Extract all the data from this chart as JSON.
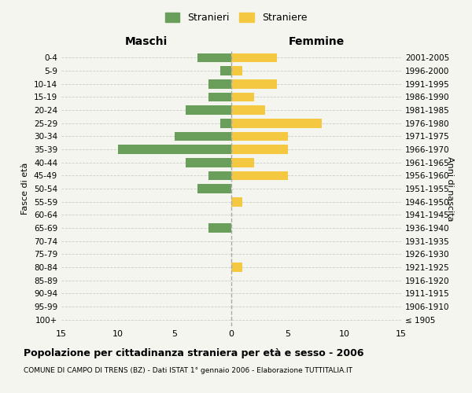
{
  "age_groups": [
    "100+",
    "95-99",
    "90-94",
    "85-89",
    "80-84",
    "75-79",
    "70-74",
    "65-69",
    "60-64",
    "55-59",
    "50-54",
    "45-49",
    "40-44",
    "35-39",
    "30-34",
    "25-29",
    "20-24",
    "15-19",
    "10-14",
    "5-9",
    "0-4"
  ],
  "birth_years": [
    "≤ 1905",
    "1906-1910",
    "1911-1915",
    "1916-1920",
    "1921-1925",
    "1926-1930",
    "1931-1935",
    "1936-1940",
    "1941-1945",
    "1946-1950",
    "1951-1955",
    "1956-1960",
    "1961-1965",
    "1966-1970",
    "1971-1975",
    "1976-1980",
    "1981-1985",
    "1986-1990",
    "1991-1995",
    "1996-2000",
    "2001-2005"
  ],
  "males": [
    0,
    0,
    0,
    0,
    0,
    0,
    0,
    2,
    0,
    0,
    3,
    2,
    4,
    10,
    5,
    1,
    4,
    2,
    2,
    1,
    3
  ],
  "females": [
    0,
    0,
    0,
    0,
    1,
    0,
    0,
    0,
    0,
    1,
    0,
    5,
    2,
    5,
    5,
    8,
    3,
    2,
    4,
    1,
    4
  ],
  "male_color": "#6a9e5b",
  "female_color": "#f5c842",
  "background_color": "#f5f5f0",
  "grid_color": "#cccccc",
  "xlim": 15,
  "title": "Popolazione per cittadinanza straniera per età e sesso - 2006",
  "subtitle": "COMUNE DI CAMPO DI TRENS (BZ) - Dati ISTAT 1° gennaio 2006 - Elaborazione TUTTITALIA.IT",
  "legend_stranieri": "Stranieri",
  "legend_straniere": "Straniere",
  "maschi_label": "Maschi",
  "femmine_label": "Femmine",
  "fasce_label": "Fasce di età",
  "anni_label": "Anni di nascita"
}
